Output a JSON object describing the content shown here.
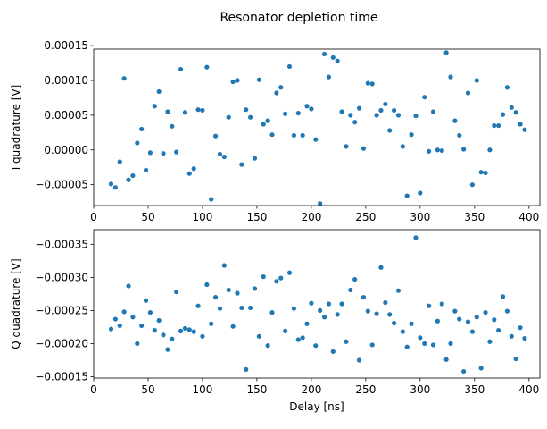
{
  "figure": {
    "title": "Resonator depletion time"
  },
  "chart_data": [
    {
      "type": "scatter",
      "title": "",
      "xlabel": "",
      "ylabel": "I quadrature [V]",
      "xlim": [
        0,
        410
      ],
      "ylim": [
        -8e-05,
        0.000145
      ],
      "xticks": [
        0,
        50,
        100,
        150,
        200,
        250,
        300,
        350,
        400
      ],
      "xtick_labels": [
        "0",
        "50",
        "100",
        "150",
        "200",
        "250",
        "300",
        "350",
        "400"
      ],
      "yticks": [
        -5e-05,
        0.0,
        5e-05,
        0.0001,
        0.00015
      ],
      "ytick_labels": [
        "−0.00005",
        "0.00000",
        "0.00005",
        "0.00010",
        "0.00015"
      ],
      "grid": false,
      "color": "#1f77b4",
      "x": [
        16,
        20,
        24,
        28,
        32,
        36,
        40,
        44,
        48,
        52,
        56,
        60,
        64,
        68,
        72,
        76,
        80,
        84,
        88,
        92,
        96,
        100,
        104,
        108,
        112,
        116,
        120,
        124,
        128,
        132,
        136,
        140,
        144,
        148,
        152,
        156,
        160,
        164,
        168,
        172,
        176,
        180,
        184,
        188,
        192,
        196,
        200,
        204,
        208,
        212,
        216,
        220,
        224,
        228,
        232,
        236,
        240,
        244,
        248,
        252,
        256,
        260,
        264,
        268,
        272,
        276,
        280,
        284,
        288,
        292,
        296,
        300,
        304,
        308,
        312,
        316,
        320,
        324,
        328,
        332,
        336,
        340,
        344,
        348,
        352,
        356,
        360,
        364,
        368,
        372,
        376,
        380,
        384,
        388,
        392,
        396
      ],
      "y": [
        -4.9e-05,
        -5.4e-05,
        -1.7e-05,
        0.000103,
        -4.3e-05,
        -3.7e-05,
        1e-05,
        3e-05,
        -2.9e-05,
        -4e-06,
        6.3e-05,
        8.4e-05,
        -5e-06,
        5.5e-05,
        3.4e-05,
        -3e-06,
        0.000116,
        5.4e-05,
        -3.4e-05,
        -2.7e-05,
        5.8e-05,
        5.7e-05,
        0.000119,
        -7.1e-05,
        2e-05,
        -6e-06,
        -1e-05,
        4.7e-05,
        9.8e-05,
        0.0001,
        -2.1e-05,
        5.8e-05,
        4.7e-05,
        -1.2e-05,
        0.000101,
        3.7e-05,
        4.2e-05,
        2.2e-05,
        8.2e-05,
        9e-05,
        5.2e-05,
        0.00012,
        2.1e-05,
        5.3e-05,
        2.1e-05,
        6.3e-05,
        5.9e-05,
        1.5e-05,
        -7.7e-05,
        0.000138,
        0.000105,
        0.000133,
        0.000128,
        5.5e-05,
        5e-06,
        5e-05,
        4e-05,
        6e-05,
        2e-06,
        9.6e-05,
        9.5e-05,
        5e-05,
        5.7e-05,
        6.6e-05,
        2.8e-05,
        5.7e-05,
        5e-05,
        5e-06,
        -6.6e-05,
        2.2e-05,
        4.9e-05,
        -6.2e-05,
        7.6e-05,
        -2e-06,
        5.5e-05,
        0.0,
        -1e-06,
        0.00014,
        0.000105,
        4.2e-05,
        2.1e-05,
        1e-06,
        8.2e-05,
        -5e-05,
        0.0001,
        -3.2e-05,
        -3.3e-05,
        0.0,
        3.5e-05,
        3.5e-05,
        5.1e-05,
        9e-05,
        6.1e-05,
        5.4e-05,
        3.7e-05,
        2.9e-05
      ]
    },
    {
      "type": "scatter",
      "title": "",
      "xlabel": "Delay [ns]",
      "ylabel": "Q quadrature [V]",
      "xlim": [
        0,
        410
      ],
      "ylim": [
        -0.000148,
        -0.000372
      ],
      "xticks": [
        0,
        50,
        100,
        150,
        200,
        250,
        300,
        350,
        400
      ],
      "xtick_labels": [
        "0",
        "50",
        "100",
        "150",
        "200",
        "250",
        "300",
        "350",
        "400"
      ],
      "yticks": [
        -0.00015,
        -0.0002,
        -0.00025,
        -0.0003,
        -0.00035
      ],
      "ytick_labels": [
        "−0.00015",
        "−0.00020",
        "−0.00025",
        "−0.00030",
        "−0.00035"
      ],
      "grid": false,
      "color": "#1f77b4",
      "x": [
        16,
        20,
        24,
        28,
        32,
        36,
        40,
        44,
        48,
        52,
        56,
        60,
        64,
        68,
        72,
        76,
        80,
        84,
        88,
        92,
        96,
        100,
        104,
        108,
        112,
        116,
        120,
        124,
        128,
        132,
        136,
        140,
        144,
        148,
        152,
        156,
        160,
        164,
        168,
        172,
        176,
        180,
        184,
        188,
        192,
        196,
        200,
        204,
        208,
        212,
        216,
        220,
        224,
        228,
        232,
        236,
        240,
        244,
        248,
        252,
        256,
        260,
        264,
        268,
        272,
        276,
        280,
        284,
        288,
        292,
        296,
        300,
        304,
        308,
        312,
        316,
        320,
        324,
        328,
        332,
        336,
        340,
        344,
        348,
        352,
        356,
        360,
        364,
        368,
        372,
        376,
        380,
        384,
        388,
        392,
        396
      ],
      "y": [
        -0.000222,
        -0.000237,
        -0.000227,
        -0.000248,
        -0.000287,
        -0.00024,
        -0.0002,
        -0.000227,
        -0.000265,
        -0.000247,
        -0.00022,
        -0.000235,
        -0.000213,
        -0.000191,
        -0.000207,
        -0.000278,
        -0.000219,
        -0.000223,
        -0.000221,
        -0.000218,
        -0.000257,
        -0.000211,
        -0.000289,
        -0.00023,
        -0.00027,
        -0.000253,
        -0.000318,
        -0.000281,
        -0.000226,
        -0.000276,
        -0.000254,
        -0.000161,
        -0.000254,
        -0.000283,
        -0.000211,
        -0.000301,
        -0.000197,
        -0.000247,
        -0.000294,
        -0.000299,
        -0.000219,
        -0.000307,
        -0.000253,
        -0.000206,
        -0.000209,
        -0.00023,
        -0.000261,
        -0.000197,
        -0.00025,
        -0.00024,
        -0.00026,
        -0.000188,
        -0.000244,
        -0.00026,
        -0.000203,
        -0.000281,
        -0.000297,
        -0.000175,
        -0.00027,
        -0.000249,
        -0.000198,
        -0.000245,
        -0.000315,
        -0.000262,
        -0.000244,
        -0.000231,
        -0.00028,
        -0.000218,
        -0.000195,
        -0.00023,
        -0.00036,
        -0.000209,
        -0.0002,
        -0.000257,
        -0.000198,
        -0.000234,
        -0.00026,
        -0.000176,
        -0.0002,
        -0.000249,
        -0.000237,
        -0.000158,
        -0.000233,
        -0.000218,
        -0.00024,
        -0.000163,
        -0.000247,
        -0.000203,
        -0.000236,
        -0.00022,
        -0.000271,
        -0.000249,
        -0.000211,
        -0.000177,
        -0.000224,
        -0.000208
      ]
    }
  ]
}
